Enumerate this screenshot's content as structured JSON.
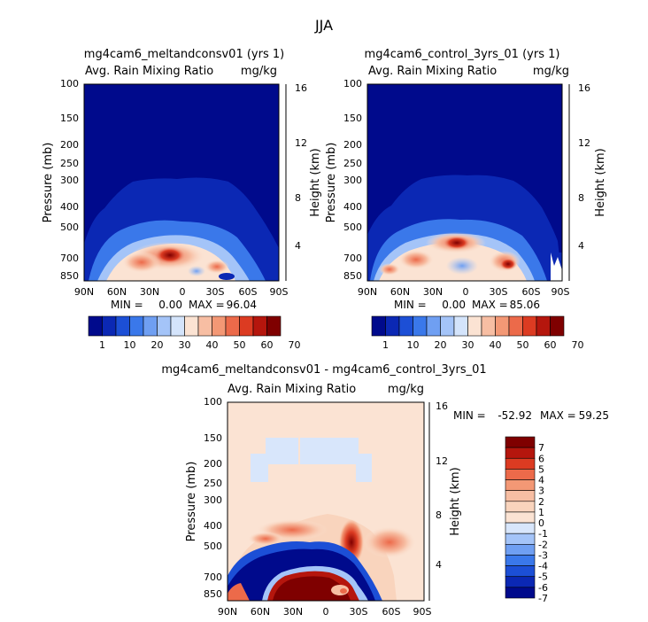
{
  "figure_title": "JJA",
  "chart_data": [
    {
      "type": "heatmap",
      "title": "mg4cam6_meltandconsv01 (yrs 1)",
      "variable": "Avg. Rain Mixing Ratio",
      "units": "mg/kg",
      "ylabel": "Pressure (mb)",
      "ylabel_right": "Height (km)",
      "x_ticks": [
        "90N",
        "60N",
        "30N",
        "0",
        "30S",
        "60S",
        "90S"
      ],
      "y_ticks": [
        "100",
        "150",
        "200",
        "250",
        "300",
        "400",
        "500",
        "700",
        "850"
      ],
      "y_ticks_right": [
        "16",
        "12",
        "8",
        "4"
      ],
      "min_label": "MIN =",
      "min": "0.00",
      "max_label": "MAX =",
      "max": "96.04",
      "colorbar_labels": [
        "1",
        "10",
        "20",
        "30",
        "40",
        "50",
        "60",
        "70"
      ]
    },
    {
      "type": "heatmap",
      "title": "mg4cam6_control_3yrs_01 (yrs 1)",
      "variable": "Avg. Rain Mixing Ratio",
      "units": "mg/kg",
      "ylabel": "Pressure (mb)",
      "ylabel_right": "Height (km)",
      "x_ticks": [
        "90N",
        "60N",
        "30N",
        "0",
        "30S",
        "60S",
        "90S"
      ],
      "y_ticks": [
        "100",
        "150",
        "200",
        "250",
        "300",
        "400",
        "500",
        "700",
        "850"
      ],
      "y_ticks_right": [
        "16",
        "12",
        "8",
        "4"
      ],
      "min_label": "MIN =",
      "min": "0.00",
      "max_label": "MAX =",
      "max": "85.06",
      "colorbar_labels": [
        "1",
        "10",
        "20",
        "30",
        "40",
        "50",
        "60",
        "70"
      ]
    },
    {
      "type": "heatmap",
      "title": "mg4cam6_meltandconsv01 - mg4cam6_control_3yrs_01",
      "variable": "Avg. Rain Mixing Ratio",
      "units": "mg/kg",
      "ylabel": "Pressure (mb)",
      "ylabel_right": "Height (km)",
      "x_ticks": [
        "90N",
        "60N",
        "30N",
        "0",
        "30S",
        "60S",
        "90S"
      ],
      "y_ticks": [
        "100",
        "150",
        "200",
        "250",
        "300",
        "400",
        "500",
        "700",
        "850"
      ],
      "y_ticks_right": [
        "16",
        "12",
        "8",
        "4"
      ],
      "min_label": "MIN =",
      "min": "-52.92",
      "max_label": "MAX =",
      "max": "59.25",
      "colorbar_labels": [
        "7",
        "6",
        "5",
        "4",
        "3",
        "2",
        "1",
        "0",
        "-1",
        "-2",
        "-3",
        "-4",
        "-5",
        "-6",
        "-7"
      ]
    }
  ],
  "colors": {
    "abs_scale": [
      "#000a8c",
      "#0b28b4",
      "#1c4fd6",
      "#3a78ea",
      "#6f9ff2",
      "#a4c4f8",
      "#d4e4fb",
      "#fbe3d3",
      "#f7bea3",
      "#f39875",
      "#ec6a4a",
      "#dc3b22",
      "#b5160d",
      "#7f0000"
    ],
    "diff_scale": [
      "#7f0000",
      "#b5160d",
      "#dc3b22",
      "#ec6a4a",
      "#f39875",
      "#f7bea3",
      "#f9d4bd",
      "#fbe3d3",
      "#d8e6fb",
      "#a4c4f8",
      "#6f9ff2",
      "#3a78ea",
      "#1c4fd6",
      "#0b28b4",
      "#000a8c"
    ]
  }
}
